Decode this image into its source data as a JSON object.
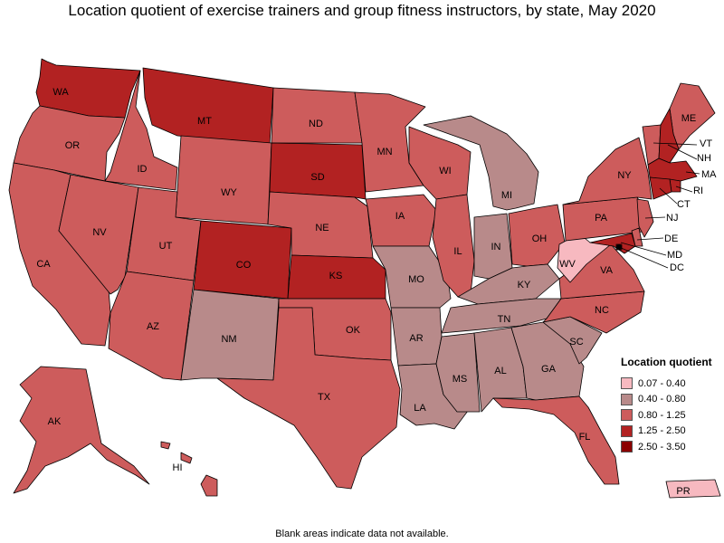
{
  "title": "Location quotient of exercise trainers and group fitness instructors, by state, May 2020",
  "footnote": "Blank areas indicate data not available.",
  "legend": {
    "title": "Location quotient",
    "items": [
      {
        "label": "0.07 - 0.40",
        "color": "#f7b9c0"
      },
      {
        "label": "0.40 - 0.80",
        "color": "#b88a8a"
      },
      {
        "label": "0.80 - 1.25",
        "color": "#cd5c5c"
      },
      {
        "label": "1.25 - 2.50",
        "color": "#b22222"
      },
      {
        "label": "2.50 - 3.50",
        "color": "#8b0000"
      }
    ]
  },
  "states": [
    {
      "abbr": "WA",
      "class": 3
    },
    {
      "abbr": "OR",
      "class": 2
    },
    {
      "abbr": "CA",
      "class": 2
    },
    {
      "abbr": "ID",
      "class": 2
    },
    {
      "abbr": "NV",
      "class": 2
    },
    {
      "abbr": "MT",
      "class": 3
    },
    {
      "abbr": "WY",
      "class": 2
    },
    {
      "abbr": "UT",
      "class": 2
    },
    {
      "abbr": "AZ",
      "class": 2
    },
    {
      "abbr": "CO",
      "class": 3
    },
    {
      "abbr": "NM",
      "class": 1
    },
    {
      "abbr": "ND",
      "class": 2
    },
    {
      "abbr": "SD",
      "class": 3
    },
    {
      "abbr": "NE",
      "class": 2
    },
    {
      "abbr": "KS",
      "class": 3
    },
    {
      "abbr": "OK",
      "class": 2
    },
    {
      "abbr": "TX",
      "class": 2
    },
    {
      "abbr": "MN",
      "class": 2
    },
    {
      "abbr": "IA",
      "class": 2
    },
    {
      "abbr": "MO",
      "class": 1
    },
    {
      "abbr": "AR",
      "class": 1
    },
    {
      "abbr": "LA",
      "class": 1
    },
    {
      "abbr": "WI",
      "class": 2
    },
    {
      "abbr": "IL",
      "class": 2
    },
    {
      "abbr": "MI",
      "class": 1
    },
    {
      "abbr": "IN",
      "class": 1
    },
    {
      "abbr": "OH",
      "class": 2
    },
    {
      "abbr": "KY",
      "class": 1
    },
    {
      "abbr": "TN",
      "class": 1
    },
    {
      "abbr": "MS",
      "class": 1
    },
    {
      "abbr": "AL",
      "class": 1
    },
    {
      "abbr": "GA",
      "class": 1
    },
    {
      "abbr": "FL",
      "class": 2
    },
    {
      "abbr": "SC",
      "class": 1
    },
    {
      "abbr": "NC",
      "class": 2
    },
    {
      "abbr": "VA",
      "class": 2
    },
    {
      "abbr": "WV",
      "class": 0
    },
    {
      "abbr": "PA",
      "class": 2
    },
    {
      "abbr": "NY",
      "class": 2
    },
    {
      "abbr": "ME",
      "class": 2
    },
    {
      "abbr": "VT",
      "class": 2
    },
    {
      "abbr": "NH",
      "class": 3
    },
    {
      "abbr": "MA",
      "class": 3
    },
    {
      "abbr": "RI",
      "class": 3
    },
    {
      "abbr": "CT",
      "class": 3
    },
    {
      "abbr": "NJ",
      "class": 2
    },
    {
      "abbr": "DE",
      "class": 2
    },
    {
      "abbr": "MD",
      "class": 3
    },
    {
      "abbr": "DC",
      "class": 4
    },
    {
      "abbr": "AK",
      "class": 2
    },
    {
      "abbr": "HI",
      "class": 2
    },
    {
      "abbr": "PR",
      "class": 0
    }
  ]
}
